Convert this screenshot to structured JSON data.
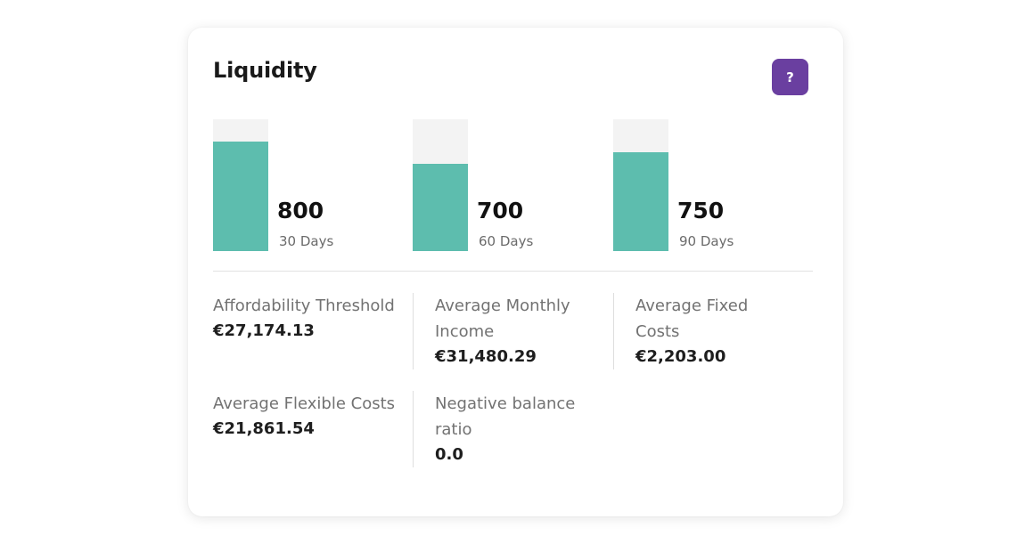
{
  "card": {
    "title": "Liquidity",
    "help_label": "?"
  },
  "gauges": [
    {
      "value": "800",
      "label": "30 Days",
      "fill_fraction": 0.83
    },
    {
      "value": "700",
      "label": "60 Days",
      "fill_fraction": 0.66
    },
    {
      "value": "750",
      "label": "90 Days",
      "fill_fraction": 0.75
    }
  ],
  "stats": [
    {
      "label": "Affordability Threshold",
      "value": "€27,174.13"
    },
    {
      "label": "Average Monthly Income",
      "value": "€31,480.29"
    },
    {
      "label": "Average Fixed Costs",
      "value": "€2,203.00"
    },
    {
      "label": "Average Flexible Costs",
      "value": "€21,861.54"
    },
    {
      "label": "Negative balance ratio",
      "value": "0.0"
    }
  ],
  "colors": {
    "accent": "#6a3fa0",
    "bar_fill": "#5dbdae",
    "bar_track": "#f3f3f3"
  }
}
